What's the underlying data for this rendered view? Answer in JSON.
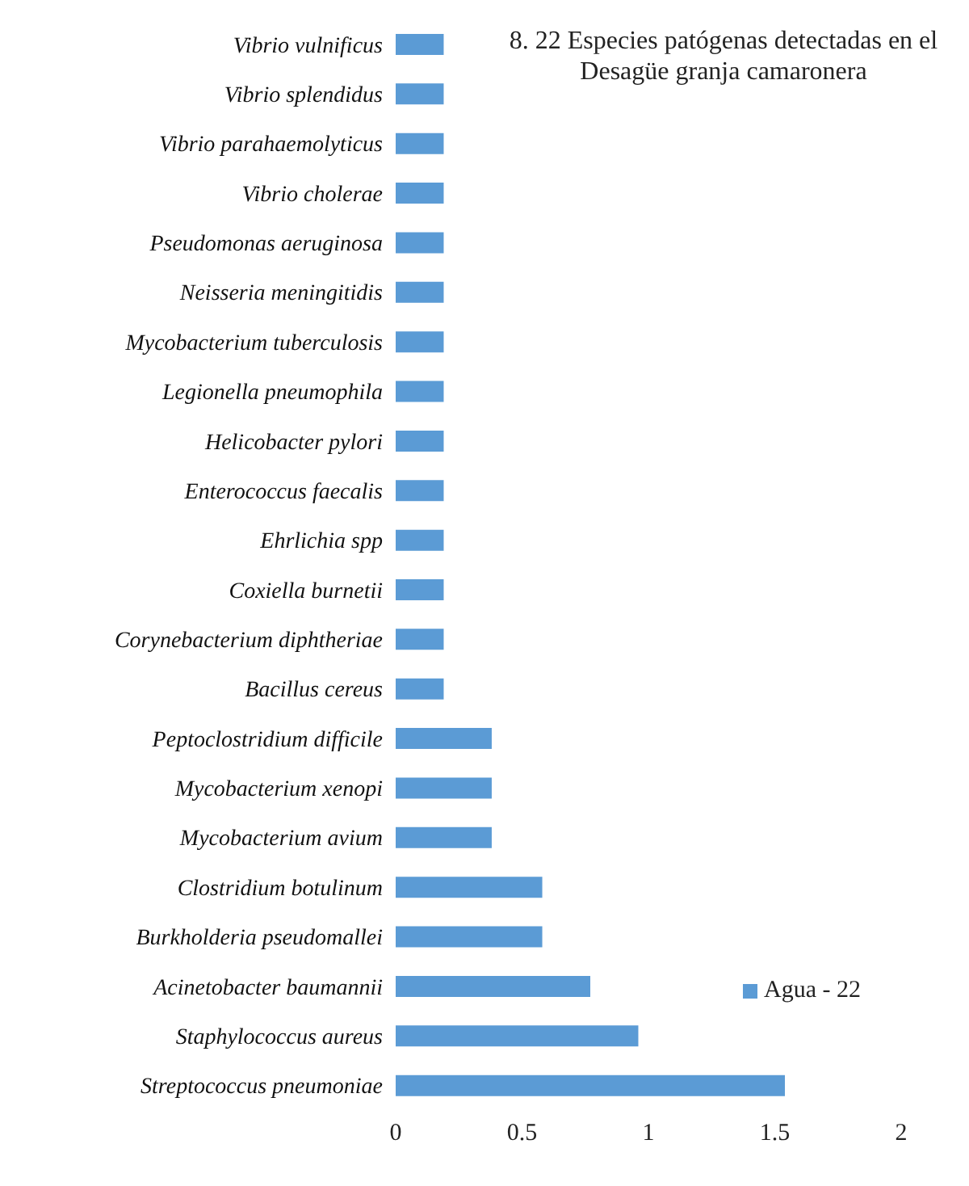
{
  "chart_data": {
    "type": "bar",
    "orientation": "horizontal",
    "title": "8. 22 Especies patógenas detectadas en el Desagüe granja camaronera",
    "categories": [
      "Vibrio vulnificus",
      "Vibrio splendidus",
      "Vibrio parahaemolyticus",
      "Vibrio cholerae",
      "Pseudomonas aeruginosa",
      "Neisseria meningitidis",
      "Mycobacterium tuberculosis",
      "Legionella pneumophila",
      "Helicobacter pylori",
      "Enterococcus faecalis",
      "Ehrlichia spp",
      "Coxiella burnetii",
      "Corynebacterium diphtheriae",
      "Bacillus cereus",
      "Peptoclostridium difficile",
      "Mycobacterium xenopi",
      "Mycobacterium avium",
      "Clostridium botulinum",
      "Burkholderia pseudomallei",
      "Acinetobacter baumannii",
      "Staphylococcus aureus",
      "Streptococcus pneumoniae"
    ],
    "series": [
      {
        "name": "Agua - 22",
        "color": "#5b9bd5",
        "values": [
          0.19,
          0.19,
          0.19,
          0.19,
          0.19,
          0.19,
          0.19,
          0.19,
          0.19,
          0.19,
          0.19,
          0.19,
          0.19,
          0.19,
          0.38,
          0.38,
          0.38,
          0.58,
          0.58,
          0.77,
          0.96,
          1.54
        ]
      }
    ],
    "xlim": [
      0,
      2
    ],
    "xticks": [
      0,
      0.5,
      1,
      1.5,
      2
    ],
    "grid": false,
    "legend": "right"
  }
}
